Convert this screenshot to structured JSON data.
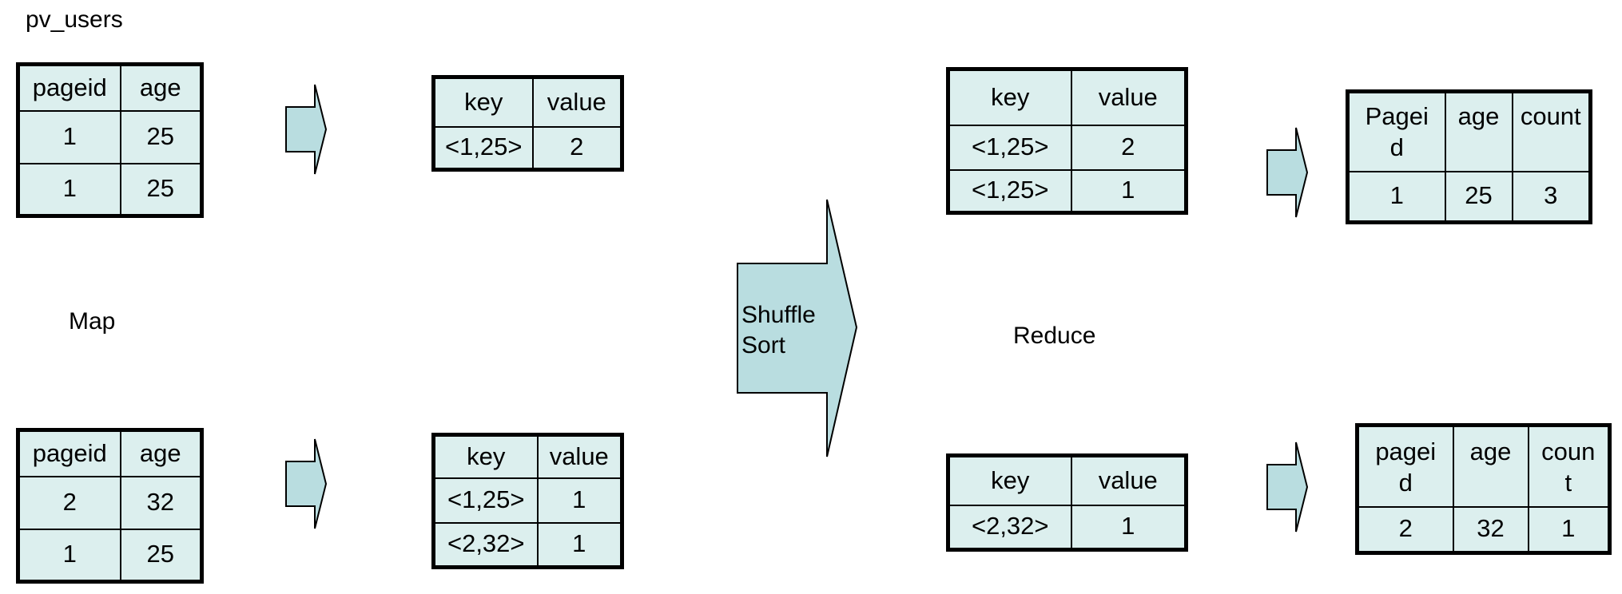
{
  "labels": {
    "title": "pv_users",
    "map": "Map",
    "reduce": "Reduce",
    "shuffle_line1": "Shuffle",
    "shuffle_line2": "Sort"
  },
  "input_tables": [
    {
      "headers": [
        "pageid",
        "age"
      ],
      "rows": [
        [
          "1",
          "25"
        ],
        [
          "1",
          "25"
        ]
      ]
    },
    {
      "headers": [
        "pageid",
        "age"
      ],
      "rows": [
        [
          "2",
          "32"
        ],
        [
          "1",
          "25"
        ]
      ]
    }
  ],
  "map_tables": [
    {
      "headers": [
        "key",
        "value"
      ],
      "rows": [
        [
          "<1,25>",
          "2"
        ]
      ]
    },
    {
      "headers": [
        "key",
        "value"
      ],
      "rows": [
        [
          "<1,25>",
          "1"
        ],
        [
          "<2,32>",
          "1"
        ]
      ]
    }
  ],
  "shuffle_tables": [
    {
      "headers": [
        "key",
        "value"
      ],
      "rows": [
        [
          "<1,25>",
          "2"
        ],
        [
          "<1,25>",
          "1"
        ]
      ]
    },
    {
      "headers": [
        "key",
        "value"
      ],
      "rows": [
        [
          "<2,32>",
          "1"
        ]
      ]
    }
  ],
  "reduce_tables": [
    {
      "headers": [
        "Pagei\nd",
        "age",
        "count"
      ],
      "rows": [
        [
          "1",
          "25",
          "3"
        ]
      ]
    },
    {
      "headers": [
        "pagei\nd",
        "age",
        "coun\nt"
      ],
      "rows": [
        [
          "2",
          "32",
          "1"
        ]
      ]
    }
  ],
  "colors": {
    "fill": "#dcefee",
    "arrow_fill": "#b9dde0",
    "border": "#000000"
  }
}
